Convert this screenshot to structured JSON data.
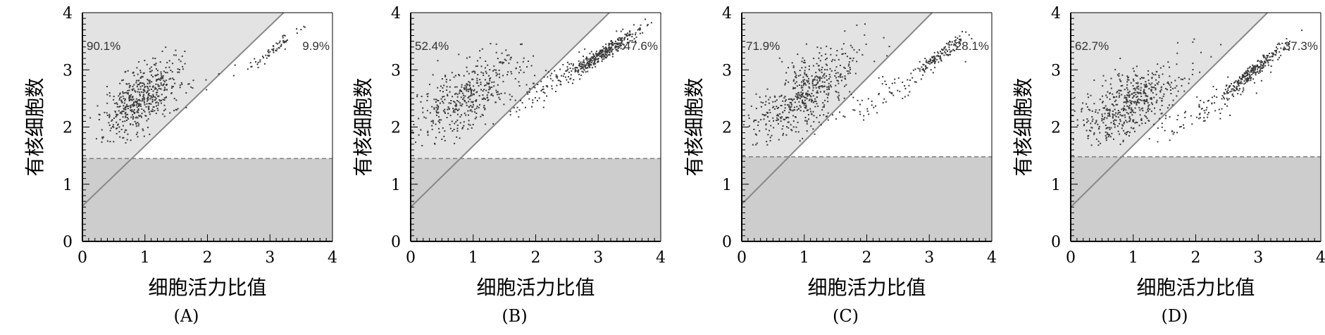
{
  "chart_data": [
    {
      "type": "scatter",
      "panel_label": "(A)",
      "xlabel": "细胞活力比值",
      "ylabel": "有核细胞数",
      "xlim": [
        0,
        4
      ],
      "ylim": [
        0,
        4
      ],
      "xticks": [
        "0",
        "1",
        "2",
        "3",
        "4"
      ],
      "yticks": [
        "0",
        "1",
        "2",
        "3",
        "4"
      ],
      "threshold_y": 1.45,
      "diagonal_line": {
        "intercept": 0.62,
        "slope": 1.05
      },
      "left_region_percent": "90.1%",
      "right_region_percent": "9.9%",
      "clusters": [
        {
          "cx": 0.95,
          "cy": 2.5,
          "n": 520,
          "major": 0.42,
          "minor": 0.2,
          "angle": 0.82
        },
        {
          "cx": 3.05,
          "cy": 3.35,
          "n": 60,
          "major": 0.3,
          "minor": 0.04,
          "angle": 0.72
        },
        {
          "cx": 2.3,
          "cy": 2.9,
          "n": 8,
          "major": 0.5,
          "minor": 0.2,
          "angle": 0.7
        }
      ]
    },
    {
      "type": "scatter",
      "panel_label": "(B)",
      "xlabel": "细胞活力比值",
      "ylabel": "有核细胞数",
      "xlim": [
        0,
        4
      ],
      "ylim": [
        0,
        4
      ],
      "xticks": [
        "0",
        "1",
        "2",
        "3",
        "4"
      ],
      "yticks": [
        "0",
        "1",
        "2",
        "3",
        "4"
      ],
      "threshold_y": 1.45,
      "diagonal_line": {
        "intercept": 0.6,
        "slope": 1.07
      },
      "left_region_percent": "52.4%",
      "right_region_percent": "47.6%",
      "clusters": [
        {
          "cx": 0.95,
          "cy": 2.55,
          "n": 420,
          "major": 0.5,
          "minor": 0.25,
          "angle": 0.7
        },
        {
          "cx": 3.1,
          "cy": 3.3,
          "n": 330,
          "major": 0.36,
          "minor": 0.05,
          "angle": 0.62
        },
        {
          "cx": 2.2,
          "cy": 2.75,
          "n": 100,
          "major": 0.6,
          "minor": 0.1,
          "angle": 0.62
        }
      ]
    },
    {
      "type": "scatter",
      "panel_label": "(C)",
      "xlabel": "细胞活力比值",
      "ylabel": "有核细胞数",
      "xlim": [
        0,
        4
      ],
      "ylim": [
        0,
        4
      ],
      "xticks": [
        "0",
        "1",
        "2",
        "3",
        "4"
      ],
      "yticks": [
        "0",
        "1",
        "2",
        "3",
        "4"
      ],
      "threshold_y": 1.48,
      "diagonal_line": {
        "intercept": 0.65,
        "slope": 1.1
      },
      "left_region_percent": "71.9%",
      "right_region_percent": "28.1%",
      "clusters": [
        {
          "cx": 1.0,
          "cy": 2.55,
          "n": 520,
          "major": 0.55,
          "minor": 0.25,
          "angle": 0.72
        },
        {
          "cx": 3.15,
          "cy": 3.25,
          "n": 130,
          "major": 0.3,
          "minor": 0.05,
          "angle": 0.68
        },
        {
          "cx": 2.4,
          "cy": 2.6,
          "n": 60,
          "major": 0.55,
          "minor": 0.12,
          "angle": 0.55
        }
      ]
    },
    {
      "type": "scatter",
      "panel_label": "(D)",
      "xlabel": "细胞活力比值",
      "ylabel": "有核细胞数",
      "xlim": [
        0,
        4
      ],
      "ylim": [
        0,
        4
      ],
      "xticks": [
        "0",
        "1",
        "2",
        "3",
        "4"
      ],
      "yticks": [
        "0",
        "1",
        "2",
        "3",
        "4"
      ],
      "threshold_y": 1.48,
      "diagonal_line": {
        "intercept": 0.6,
        "slope": 1.08
      },
      "left_region_percent": "62.7%",
      "right_region_percent": "37.3%",
      "clusters": [
        {
          "cx": 0.95,
          "cy": 2.4,
          "n": 540,
          "major": 0.5,
          "minor": 0.25,
          "angle": 0.68
        },
        {
          "cx": 2.95,
          "cy": 3.0,
          "n": 260,
          "major": 0.33,
          "minor": 0.05,
          "angle": 0.72
        },
        {
          "cx": 2.2,
          "cy": 2.35,
          "n": 90,
          "major": 0.5,
          "minor": 0.13,
          "angle": 0.6
        }
      ]
    }
  ],
  "colors": {
    "upper_region": "#e3e3e3",
    "lower_region": "#cdcdcd",
    "white_region": "#ffffff",
    "points": "#3a3a3a",
    "diagonal": "#888888",
    "threshold_dash": "#808080",
    "axis": "#000000"
  }
}
